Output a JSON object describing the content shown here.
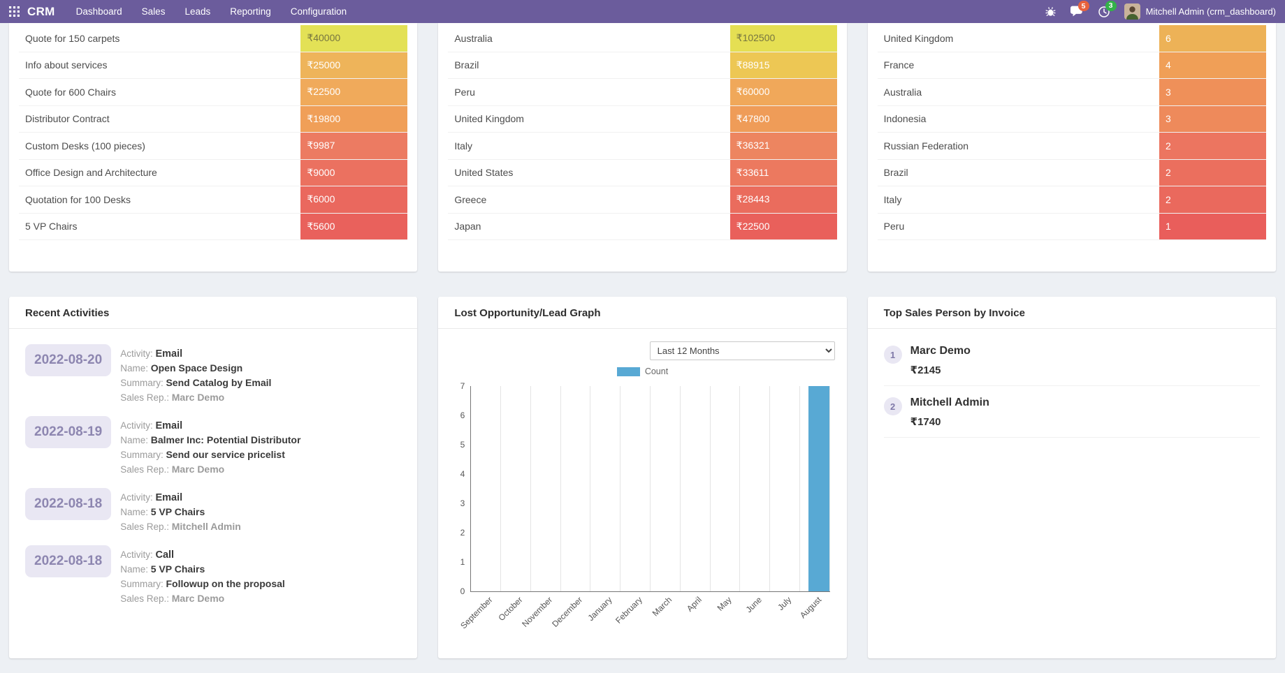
{
  "navbar": {
    "brand": "CRM",
    "menus": [
      "Dashboard",
      "Sales",
      "Leads",
      "Reporting",
      "Configuration"
    ],
    "messages_badge": "5",
    "activities_badge": "3",
    "user_name": "Mitchell Admin (crm_dashboard)"
  },
  "heat_tables": [
    {
      "rows": [
        {
          "label": "Quote for 150 carpets",
          "value": "₹40000",
          "bg": "#e3e156",
          "fg": "#767540"
        },
        {
          "label": "Info about services",
          "value": "₹25000",
          "bg": "#eeb45a",
          "fg": "#ffffff"
        },
        {
          "label": "Quote for 600 Chairs",
          "value": "₹22500",
          "bg": "#f0aa5b",
          "fg": "#ffffff"
        },
        {
          "label": "Distributor Contract",
          "value": "₹19800",
          "bg": "#f09f58",
          "fg": "#ffffff"
        },
        {
          "label": "Custom Desks (100 pieces)",
          "value": "₹9987",
          "bg": "#ec7b62",
          "fg": "#ffffff"
        },
        {
          "label": "Office Design and Architecture",
          "value": "₹9000",
          "bg": "#eb7160",
          "fg": "#ffffff"
        },
        {
          "label": "Quotation for 100 Desks",
          "value": "₹6000",
          "bg": "#ea685e",
          "fg": "#ffffff"
        },
        {
          "label": "5 VP Chairs",
          "value": "₹5600",
          "bg": "#e9615c",
          "fg": "#ffffff"
        }
      ]
    },
    {
      "rows": [
        {
          "label": "Australia",
          "value": "₹102500",
          "bg": "#e5df53",
          "fg": "#767540"
        },
        {
          "label": "Brazil",
          "value": "₹88915",
          "bg": "#edc754",
          "fg": "#ffffff"
        },
        {
          "label": "Peru",
          "value": "₹60000",
          "bg": "#f0a85a",
          "fg": "#ffffff"
        },
        {
          "label": "United Kingdom",
          "value": "₹47800",
          "bg": "#ef9c58",
          "fg": "#ffffff"
        },
        {
          "label": "Italy",
          "value": "₹36321",
          "bg": "#ed8560",
          "fg": "#ffffff"
        },
        {
          "label": "United States",
          "value": "₹33611",
          "bg": "#ec795f",
          "fg": "#ffffff"
        },
        {
          "label": "Greece",
          "value": "₹28443",
          "bg": "#ea6c5d",
          "fg": "#ffffff"
        },
        {
          "label": "Japan",
          "value": "₹22500",
          "bg": "#e9605b",
          "fg": "#ffffff"
        }
      ]
    },
    {
      "rows": [
        {
          "label": "United Kingdom",
          "value": "6",
          "bg": "#edb257",
          "fg": "#ffffff"
        },
        {
          "label": "France",
          "value": "4",
          "bg": "#f09f57",
          "fg": "#ffffff"
        },
        {
          "label": "Australia",
          "value": "3",
          "bg": "#ef9059",
          "fg": "#ffffff"
        },
        {
          "label": "Indonesia",
          "value": "3",
          "bg": "#ee8a5b",
          "fg": "#ffffff"
        },
        {
          "label": "Russian Federation",
          "value": "2",
          "bg": "#ec7560",
          "fg": "#ffffff"
        },
        {
          "label": "Brazil",
          "value": "2",
          "bg": "#eb6f5e",
          "fg": "#ffffff"
        },
        {
          "label": "Italy",
          "value": "2",
          "bg": "#ea695d",
          "fg": "#ffffff"
        },
        {
          "label": "Peru",
          "value": "1",
          "bg": "#e95e5b",
          "fg": "#ffffff"
        }
      ]
    }
  ],
  "recent_activities": {
    "title": "Recent Activities",
    "labels": {
      "activity": "Activity:",
      "name": "Name:",
      "summary": "Summary:",
      "rep": "Sales Rep.:"
    },
    "items": [
      {
        "date": "2022-08-20",
        "activity": "Email",
        "name": "Open Space Design",
        "summary": "Send Catalog by Email",
        "rep": "Marc Demo"
      },
      {
        "date": "2022-08-19",
        "activity": "Email",
        "name": "Balmer Inc: Potential Distributor",
        "summary": "Send our service pricelist",
        "rep": "Marc Demo"
      },
      {
        "date": "2022-08-18",
        "activity": "Email",
        "name": "5 VP Chairs",
        "summary": "",
        "rep": "Mitchell Admin"
      },
      {
        "date": "2022-08-18",
        "activity": "Call",
        "name": "5 VP Chairs",
        "summary": "Followup on the proposal",
        "rep": "Marc Demo"
      }
    ]
  },
  "graph_card": {
    "title": "Lost Opportunity/Lead Graph",
    "range_selected": "Last 12 Months",
    "legend_label": "Count"
  },
  "chart_data": {
    "type": "bar",
    "title": "Lost Opportunity/Lead Graph",
    "categories": [
      "September",
      "October",
      "November",
      "December",
      "January",
      "February",
      "March",
      "April",
      "May",
      "June",
      "July",
      "August"
    ],
    "series": [
      {
        "name": "Count",
        "values": [
          0,
          0,
          0,
          0,
          0,
          0,
          0,
          0,
          0,
          0,
          0,
          7
        ]
      }
    ],
    "xlabel": "",
    "ylabel": "",
    "ylim": [
      0,
      7
    ],
    "yticks": [
      0,
      1,
      2,
      3,
      4,
      5,
      6,
      7
    ],
    "grid": "vertical-only",
    "legend_position": "top-center",
    "bar_color": "#58a9d4"
  },
  "top_sales": {
    "title": "Top Sales Person by Invoice",
    "items": [
      {
        "rank": "1",
        "name": "Marc Demo",
        "amount": "₹2145"
      },
      {
        "rank": "2",
        "name": "Mitchell Admin",
        "amount": "₹1740"
      }
    ]
  },
  "colors": {
    "navbar_bg": "#6b5c9c",
    "page_bg": "#edf0f4",
    "badge_messages": "#e8623d",
    "badge_activities": "#33b249",
    "date_badge_bg": "#e9e7f3",
    "date_badge_fg": "#8d86b0",
    "bar": "#58a9d4"
  }
}
